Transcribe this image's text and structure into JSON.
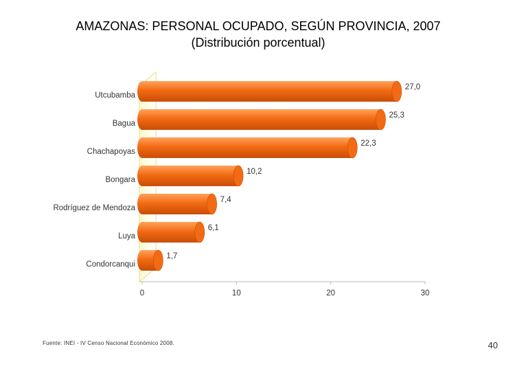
{
  "page": {
    "title": "AMAZONAS: PERSONAL OCUPADO, SEGÚN PROVINCIA, 2007",
    "subtitle": "(Distribución porcentual)",
    "source": "Fuente: INEI - IV Censo Nacional Económico 2008.",
    "page_number": "40"
  },
  "colors": {
    "bar": "#f26b14",
    "bar_dark": "#c94d06",
    "bar_light": "#ffa35c",
    "panel_border": "#e8dc8a"
  },
  "chart_data": {
    "type": "bar",
    "orientation": "horizontal",
    "title": "AMAZONAS: PERSONAL OCUPADO, SEGÚN PROVINCIA, 2007",
    "subtitle": "(Distribución porcentual)",
    "categories": [
      "Utcubamba",
      "Bagua",
      "Chachapoyas",
      "Bongara",
      "Rodríguez de Mendoza",
      "Luya",
      "Condorcanqui"
    ],
    "values": [
      27.0,
      25.3,
      22.3,
      10.2,
      7.4,
      6.1,
      1.7
    ],
    "value_labels": [
      "27,0",
      "25,3",
      "22,3",
      "10,2",
      "7,4",
      "6,1",
      "1,7"
    ],
    "xlim": [
      0,
      30
    ],
    "xticks": [
      0,
      10,
      20,
      30
    ],
    "xtick_labels": [
      "0",
      "10",
      "20",
      "30"
    ],
    "grid": false,
    "xlabel": "",
    "ylabel": ""
  }
}
